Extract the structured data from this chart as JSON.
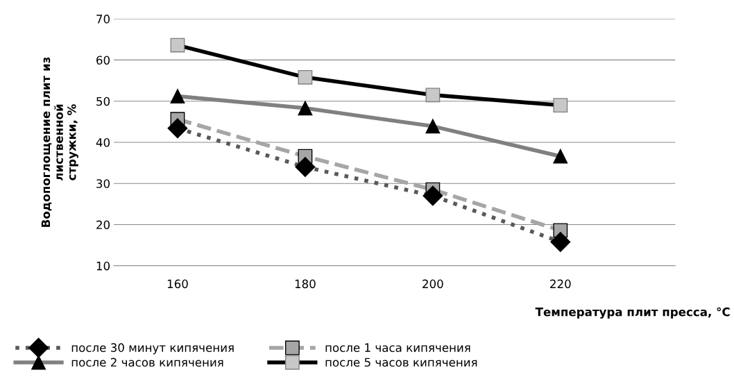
{
  "chart_data": {
    "type": "line",
    "xlabel": "Температура плит пресса, °C",
    "ylabel": "Водопоглощение плит из\nлиственной\nстружки, %",
    "categories": [
      "160",
      "180",
      "200",
      "220"
    ],
    "series": [
      {
        "name": "после 30 минут кипячения",
        "color": "#595959",
        "marker": "diamond",
        "line_style": "dotted",
        "values": [
          43.4,
          34,
          27,
          15.8
        ]
      },
      {
        "name": "после 1 часа кипячения",
        "color": "#a6a6a6",
        "marker": "square",
        "line_style": "dashed",
        "values": [
          45.6,
          36.6,
          28.5,
          18.6
        ]
      },
      {
        "name": "после 2 часов кипячения",
        "color": "#808080",
        "marker": "triangle",
        "line_style": "solid",
        "values": [
          51.2,
          48.3,
          43.9,
          36.6
        ]
      },
      {
        "name": "после 5 часов кипячения",
        "color": "#000000",
        "marker": "square",
        "line_style": "solid",
        "values": [
          63.6,
          55.8,
          51.5,
          49
        ]
      }
    ],
    "ylim": [
      10,
      70
    ],
    "yticks": [
      10,
      20,
      30,
      40,
      50,
      60,
      70
    ],
    "grid": "y",
    "legend": "bottom"
  }
}
